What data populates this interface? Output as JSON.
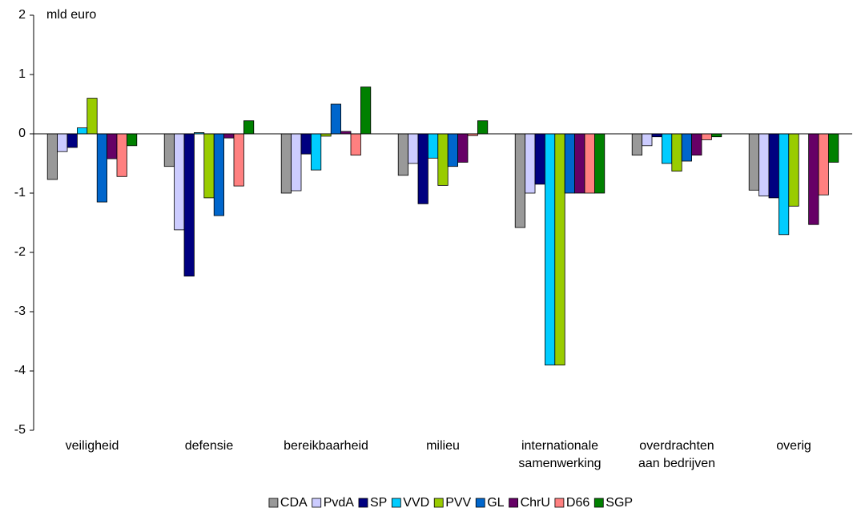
{
  "chart_data": {
    "type": "bar",
    "y_label": "mld euro",
    "categories": [
      "veiligheid",
      "defensie",
      "bereikbaarheid",
      "milieu",
      "internationale\nsamenwerking",
      "overdrachten\naan bedrijven",
      "overig"
    ],
    "series": [
      {
        "name": "CDA",
        "color": "#999999",
        "values": [
          -0.77,
          -0.55,
          -1.0,
          -0.7,
          -1.58,
          -0.36,
          -0.95
        ]
      },
      {
        "name": "PvdA",
        "color": "#ccccff",
        "values": [
          -0.3,
          -1.62,
          -0.96,
          -0.5,
          -1.0,
          -0.2,
          -1.05
        ]
      },
      {
        "name": "SP",
        "color": "#000080",
        "values": [
          -0.23,
          -2.4,
          -0.34,
          -1.18,
          -0.85,
          -0.05,
          -1.08
        ]
      },
      {
        "name": "VVD",
        "color": "#00ccff",
        "values": [
          0.1,
          0.02,
          -0.61,
          -0.41,
          -3.9,
          -0.5,
          -1.7
        ]
      },
      {
        "name": "PVV",
        "color": "#99cc00",
        "values": [
          0.6,
          -1.08,
          -0.04,
          -0.87,
          -3.9,
          -0.63,
          -1.22
        ]
      },
      {
        "name": "GL",
        "color": "#0066cc",
        "values": [
          -1.15,
          -1.38,
          0.5,
          -0.55,
          -1.0,
          -0.46,
          0
        ]
      },
      {
        "name": "ChrU",
        "color": "#660066",
        "values": [
          -0.42,
          -0.07,
          0.04,
          -0.48,
          -1.0,
          -0.36,
          -1.53
        ]
      },
      {
        "name": "D66",
        "color": "#ff8080",
        "values": [
          -0.72,
          -0.88,
          -0.36,
          -0.03,
          -1.0,
          -0.1,
          -1.03
        ]
      },
      {
        "name": "SGP",
        "color": "#008000",
        "values": [
          -0.2,
          0.22,
          0.79,
          0.22,
          -1.0,
          -0.05,
          -0.48
        ]
      }
    ],
    "ylim": [
      -5,
      2
    ],
    "yticks": [
      -5,
      -4,
      -3,
      -2,
      -1,
      0,
      1,
      2
    ],
    "grid": false
  }
}
